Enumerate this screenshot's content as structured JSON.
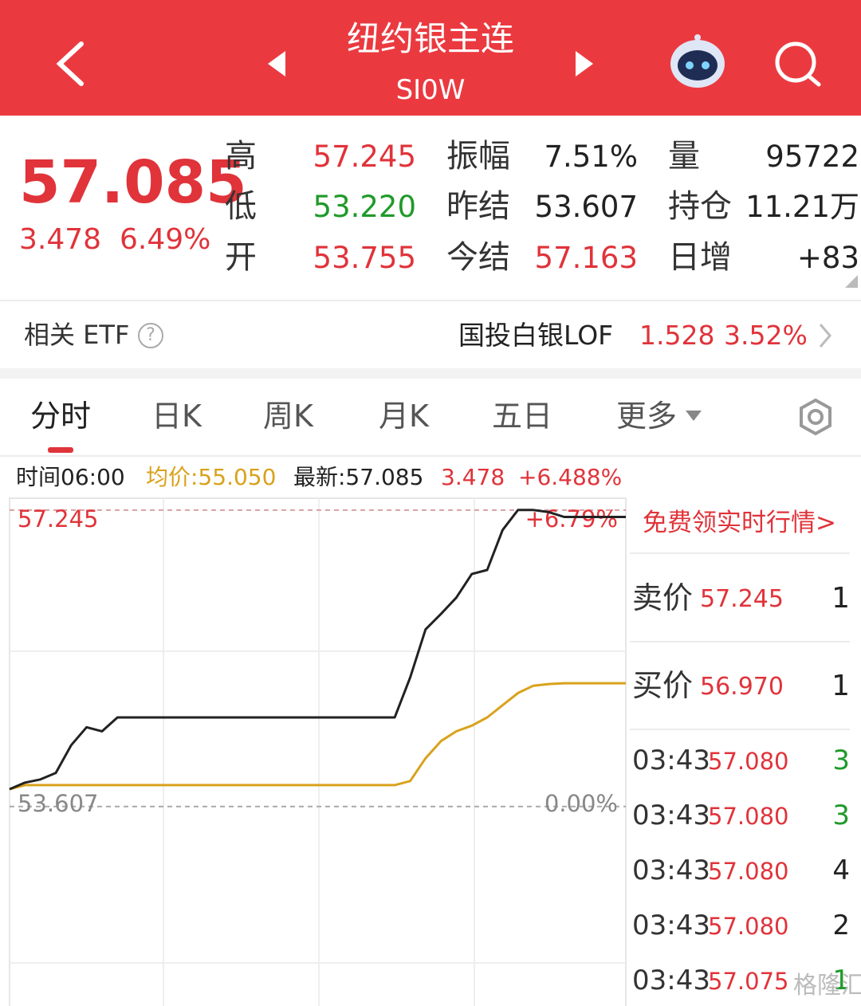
{
  "header": {
    "title": "纽约银主连",
    "code": "SI0W"
  },
  "quote": {
    "price": "57.085",
    "change": "3.478",
    "change_pct": "6.49%",
    "stats": [
      [
        {
          "label": "高",
          "value": "57.245"
        },
        {
          "label": "振幅",
          "value": "7.51%"
        },
        {
          "label": "量",
          "value": "95722"
        }
      ],
      [
        {
          "label": "低",
          "value": "53.220"
        },
        {
          "label": "昨结",
          "value": "53.607"
        },
        {
          "label": "持仓",
          "value": "11.21万"
        }
      ],
      [
        {
          "label": "开",
          "value": "53.755"
        },
        {
          "label": "今结",
          "value": "57.163"
        },
        {
          "label": "日增",
          "value": "+83"
        }
      ]
    ]
  },
  "etf": {
    "label": "相关 ETF",
    "help": "?",
    "name": "国投白银LOF",
    "price": "1.528",
    "change_pct": "3.52%"
  },
  "tabs": [
    "分时",
    "日K",
    "周K",
    "月K",
    "五日",
    "更多"
  ],
  "chart_info": {
    "time": "时间06:00",
    "avg": "均价:55.050",
    "latest": "最新:57.085",
    "change": "3.478",
    "change_pct": "+6.488%"
  },
  "chart_data": {
    "type": "line",
    "ylim": [
      51.16,
      57.39
    ],
    "yticks": [
      57.245,
      53.607
    ],
    "pct_labels": [
      "+6.79%",
      "0.00%"
    ],
    "series": [
      {
        "color": "#222222",
        "values": [
          53.82,
          53.9,
          53.94,
          54.02,
          54.36,
          54.58,
          54.53,
          54.7,
          54.7,
          54.7,
          54.7,
          54.7,
          54.7,
          54.7,
          54.7,
          54.7,
          54.7,
          54.7,
          54.7,
          54.7,
          54.7,
          54.7,
          54.7,
          54.7,
          54.7,
          54.7,
          55.19,
          55.78,
          55.97,
          56.17,
          56.46,
          56.51,
          57.0,
          57.245,
          57.245,
          57.22,
          57.16,
          57.16,
          57.16,
          57.16,
          57.16
        ]
      },
      {
        "color": "#d9a21b",
        "values": [
          53.82,
          53.87,
          53.87,
          53.87,
          53.87,
          53.87,
          53.87,
          53.87,
          53.87,
          53.87,
          53.87,
          53.87,
          53.87,
          53.87,
          53.87,
          53.87,
          53.87,
          53.87,
          53.87,
          53.87,
          53.87,
          53.87,
          53.87,
          53.87,
          53.87,
          53.87,
          53.92,
          54.2,
          54.41,
          54.53,
          54.6,
          54.7,
          54.85,
          55.0,
          55.09,
          55.11,
          55.12,
          55.12,
          55.12,
          55.12,
          55.12
        ]
      }
    ]
  },
  "order_book": {
    "link": "免费领实时行情>",
    "quotes": [
      {
        "label": "卖价",
        "price": "57.245",
        "volume": "1"
      },
      {
        "label": "买价",
        "price": "56.970",
        "volume": "1"
      }
    ],
    "trades": [
      {
        "time": "03:43",
        "price": "57.080",
        "volume": "3",
        "color": "#1f9a2a"
      },
      {
        "time": "03:43",
        "price": "57.080",
        "volume": "3",
        "color": "#1f9a2a"
      },
      {
        "time": "03:43",
        "price": "57.080",
        "volume": "4",
        "color": "#222222"
      },
      {
        "time": "03:43",
        "price": "57.080",
        "volume": "2",
        "color": "#222222"
      },
      {
        "time": "03:43",
        "price": "57.075",
        "volume": "1",
        "color": "#1f9a2a"
      }
    ]
  },
  "watermark": "格隆汇"
}
